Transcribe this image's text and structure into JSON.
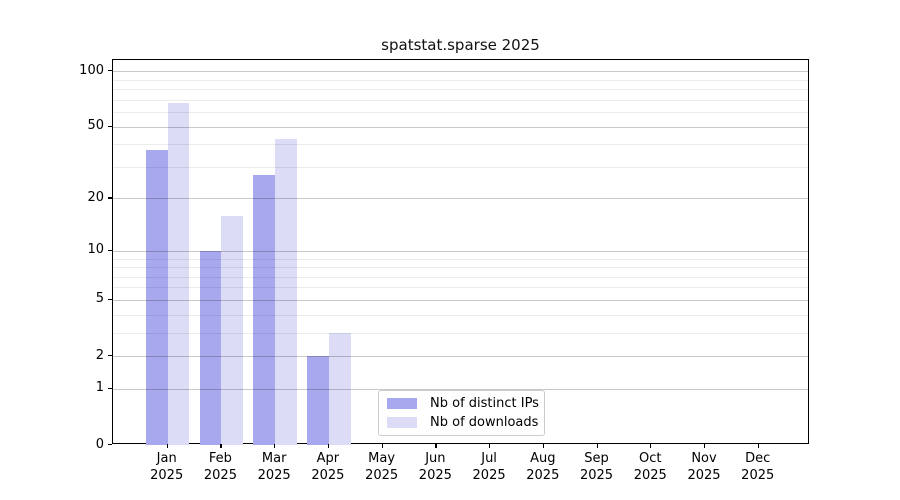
{
  "chart_data": {
    "type": "bar",
    "title": "spatstat.sparse 2025",
    "categories": [
      "Jan",
      "Feb",
      "Mar",
      "Apr",
      "May",
      "Jun",
      "Jul",
      "Aug",
      "Sep",
      "Oct",
      "Nov",
      "Dec"
    ],
    "category_year": "2025",
    "series": [
      {
        "name": "Nb of distinct IPs",
        "color": "#a8a8ee",
        "values": [
          37,
          10,
          27,
          2,
          0,
          0,
          0,
          0,
          0,
          0,
          0,
          0
        ]
      },
      {
        "name": "Nb of downloads",
        "color": "#dcdcf7",
        "values": [
          67,
          16,
          43,
          3,
          0,
          0,
          0,
          0,
          0,
          0,
          0,
          0
        ]
      }
    ],
    "y_scale": "log1p",
    "ylim": [
      0,
      115
    ],
    "y_major_ticks": [
      0,
      1,
      2,
      5,
      10,
      20,
      50,
      100
    ],
    "y_minor_ticks": [
      3,
      4,
      6,
      7,
      8,
      9,
      30,
      40,
      60,
      70,
      80,
      90
    ],
    "grid": "on",
    "legend_position": "bottom-center",
    "colors": {
      "grid_major": "rgba(0,0,0,0.21)",
      "grid_minor": "rgba(0,0,0,0.075)",
      "axis": "#000000",
      "background": "#ffffff"
    }
  }
}
